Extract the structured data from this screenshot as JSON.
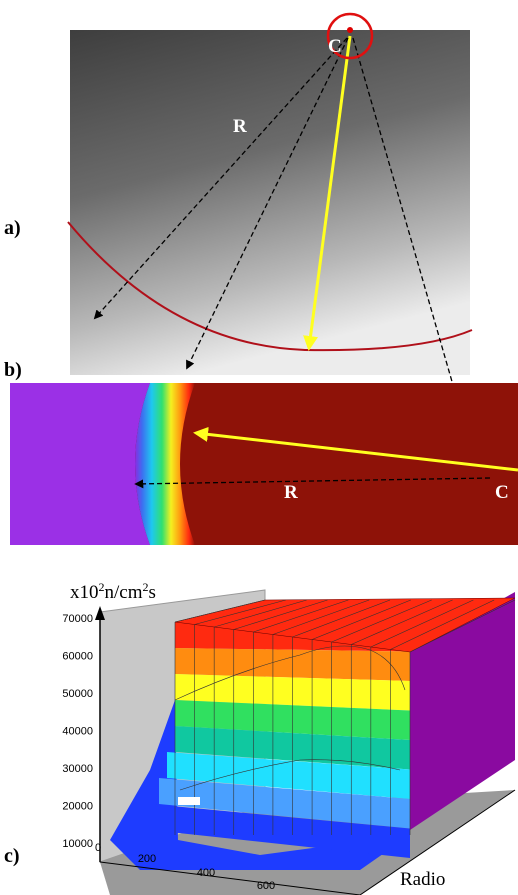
{
  "panels": [
    {
      "label": "a)",
      "markers": [
        "C",
        "R"
      ]
    },
    {
      "label": "b)",
      "markers": [
        "R",
        "C"
      ]
    },
    {
      "label": "c)",
      "unit": {
        "parts": [
          "x10",
          "2",
          "n/cm",
          "2",
          "s"
        ]
      },
      "yticks": [
        70000,
        60000,
        50000,
        40000,
        30000,
        20000,
        10000
      ],
      "origin": "0",
      "xticks": [
        200,
        400,
        600
      ],
      "axis_label": "Radio"
    }
  ]
}
